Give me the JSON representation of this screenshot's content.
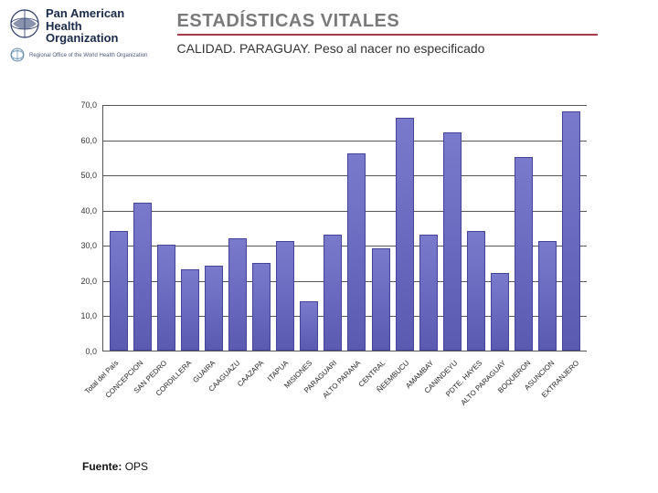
{
  "logo": {
    "org_line1": "Pan American",
    "org_line2": "Health",
    "org_line3": "Organization",
    "who_tag": "Regional Office of the World Health Organization"
  },
  "header": {
    "title": "ESTADÍSTICAS VITALES",
    "subtitle": "CALIDAD. PARAGUAY. Peso al nacer no especificado",
    "title_color": "#7a7a7a",
    "underline_color": "#a83a4a"
  },
  "chart": {
    "type": "bar",
    "ylim": [
      0.0,
      70.0
    ],
    "ytick_step": 10.0,
    "yticks": [
      "0,0",
      "10,0",
      "20,0",
      "30,0",
      "40,0",
      "50,0",
      "60,0",
      "70,0"
    ],
    "bar_fill_top": "#7a7acc",
    "bar_fill_bottom": "#5a5ab0",
    "bar_border": "#44449a",
    "grid_color": "#555555",
    "background_color": "#ffffff",
    "axis_fontsize": 9,
    "xlabel_fontsize": 8,
    "xlabel_rotation": -45,
    "categories": [
      "Total del País",
      "CONCEPCION",
      "SAN PEDRO",
      "CORDILLERA",
      "GUAIRA",
      "CAAGUAZU",
      "CAAZAPA",
      "ITAPUA",
      "MISIONES",
      "PARAGUARI",
      "ALTO PARANA",
      "CENTRAL",
      "ÑEEMBUCU",
      "AMAMBAY",
      "CANINDEYU",
      "PDTE. HAYES",
      "ALTO PARAGUAY",
      "BOQUERON",
      "ASUNCION",
      "EXTRANJERO"
    ],
    "values": [
      34.0,
      42.0,
      30.0,
      23.0,
      24.0,
      32.0,
      25.0,
      31.0,
      14.0,
      33.0,
      56.0,
      29.0,
      66.0,
      33.0,
      62.0,
      34.0,
      22.0,
      55.0,
      31.0,
      68.0
    ]
  },
  "source": {
    "label": "Fuente:",
    "value": "OPS"
  }
}
